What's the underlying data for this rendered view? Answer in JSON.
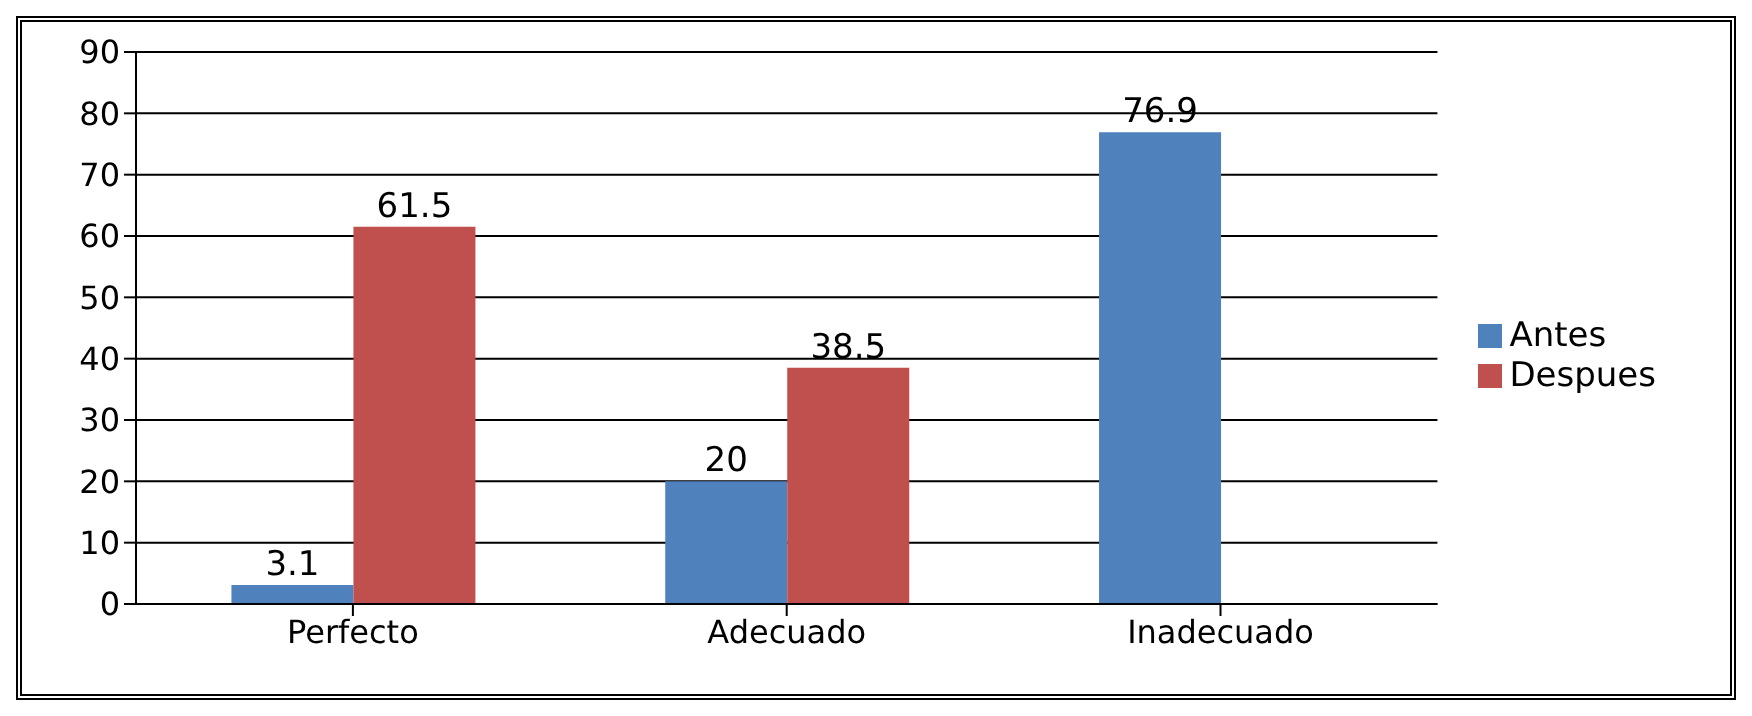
{
  "chart_data": {
    "type": "bar",
    "categories": [
      "Perfecto",
      "Adecuado",
      "Inadecuado"
    ],
    "series": [
      {
        "name": "Antes",
        "color": "#4f81bd",
        "values": [
          3.1,
          20,
          76.9
        ]
      },
      {
        "name": "Despues",
        "color": "#c0504d",
        "values": [
          61.5,
          38.5,
          null
        ]
      }
    ],
    "ylim": [
      0,
      90
    ],
    "yticks": [
      0,
      10,
      20,
      30,
      40,
      50,
      60,
      70,
      80,
      90
    ],
    "grid": "y",
    "legend": "right",
    "data_labels": true
  }
}
